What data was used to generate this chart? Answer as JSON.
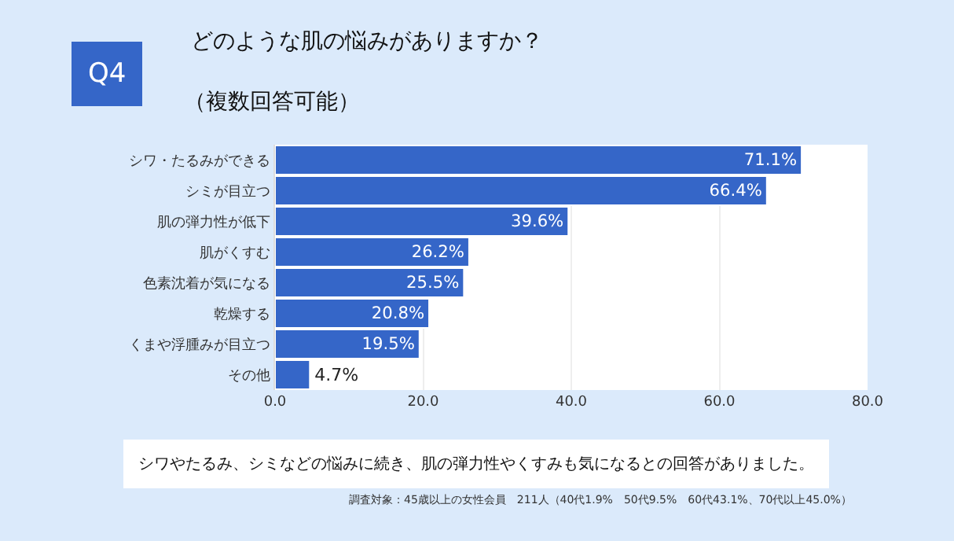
{
  "chart_data": {
    "type": "bar",
    "orientation": "horizontal",
    "title": "どのような肌の悩みがありますか？",
    "subtitle": "（複数回答可能）",
    "categories": [
      "シワ・たるみができる",
      "シミが目立つ",
      "肌の弾力性が低下",
      "肌がくすむ",
      "色素沈着が気になる",
      "乾燥する",
      "くまや浮腫みが目立つ",
      "その他"
    ],
    "values": [
      71.1,
      66.4,
      39.6,
      26.2,
      25.5,
      20.8,
      19.5,
      4.7
    ],
    "value_labels": [
      "71.1%",
      "66.4%",
      "39.6%",
      "26.2%",
      "25.5%",
      "20.8%",
      "19.5%",
      "4.7%"
    ],
    "color": "#3566c8",
    "xlim": [
      0,
      80
    ],
    "xticks": [
      {
        "value": 0,
        "label": "0.0"
      },
      {
        "value": 20,
        "label": "20.0"
      },
      {
        "value": 40,
        "label": "40.0"
      },
      {
        "value": 60,
        "label": "60.0"
      },
      {
        "value": 80,
        "label": "80.0"
      }
    ],
    "grid": "x",
    "annotations": [
      "Q4",
      "シワやたるみ、シミなどの悩みに続き、肌の弾力性やくすみも気になるとの回答がありました。",
      "調査対象：45歳以上の女性会員　211人（40代1.9%　50代9.5%　60代43.1%、70代以上45.0%）"
    ]
  }
}
